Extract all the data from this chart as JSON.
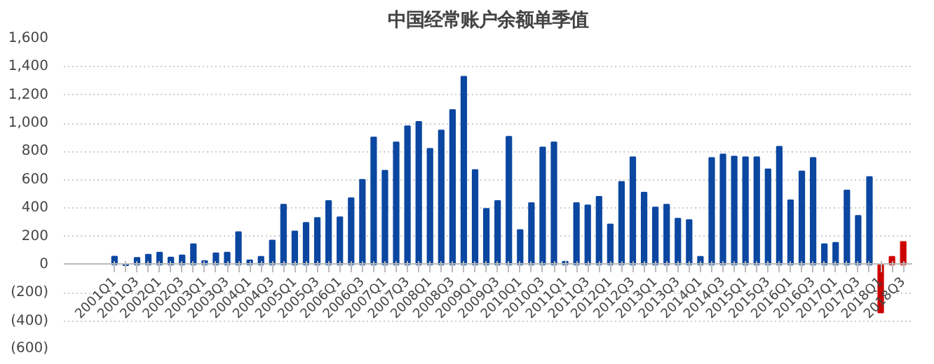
{
  "chart_data": {
    "type": "bar",
    "title": "中国经常账户余额单季值",
    "categories": [
      "2001Q1",
      null,
      "2001Q3",
      null,
      "2002Q1",
      null,
      "2002Q3",
      null,
      "2003Q1",
      null,
      "2003Q3",
      null,
      "2004Q1",
      null,
      "2004Q3",
      null,
      "2005Q1",
      null,
      "2005Q3",
      null,
      "2006Q1",
      null,
      "2006Q3",
      null,
      "2007Q1",
      null,
      "2007Q3",
      null,
      "2008Q1",
      null,
      "2008Q3",
      null,
      "2009Q1",
      null,
      "2009Q3",
      null,
      "2010Q1",
      null,
      "2010Q3",
      null,
      "2011Q1",
      null,
      "2011Q3",
      null,
      "2012Q1",
      null,
      "2012Q3",
      null,
      "2013Q1",
      null,
      "2013Q3",
      null,
      "2014Q1",
      null,
      "2014Q3",
      null,
      "2015Q1",
      null,
      "2015Q3",
      null,
      "2016Q1",
      null,
      "2016Q3",
      null,
      "2017Q1",
      null,
      "2017Q3",
      null,
      "2018Q1",
      null,
      "2018Q3"
    ],
    "values": [
      57,
      -5,
      48,
      70,
      85,
      50,
      65,
      145,
      25,
      80,
      85,
      230,
      30,
      55,
      170,
      425,
      235,
      295,
      330,
      450,
      335,
      470,
      600,
      900,
      665,
      865,
      980,
      1010,
      820,
      950,
      1095,
      1330,
      670,
      395,
      450,
      905,
      245,
      435,
      830,
      865,
      20,
      435,
      420,
      480,
      285,
      585,
      760,
      510,
      405,
      425,
      325,
      315,
      55,
      755,
      780,
      765,
      760,
      760,
      675,
      835,
      455,
      660,
      755,
      145,
      155,
      525,
      345,
      620,
      -340,
      55,
      160
    ],
    "colors": [
      "#0b47a1",
      "#0b47a1",
      "#0b47a1",
      "#0b47a1",
      "#0b47a1",
      "#0b47a1",
      "#0b47a1",
      "#0b47a1",
      "#0b47a1",
      "#0b47a1",
      "#0b47a1",
      "#0b47a1",
      "#0b47a1",
      "#0b47a1",
      "#0b47a1",
      "#0b47a1",
      "#0b47a1",
      "#0b47a1",
      "#0b47a1",
      "#0b47a1",
      "#0b47a1",
      "#0b47a1",
      "#0b47a1",
      "#0b47a1",
      "#0b47a1",
      "#0b47a1",
      "#0b47a1",
      "#0b47a1",
      "#0b47a1",
      "#0b47a1",
      "#0b47a1",
      "#0b47a1",
      "#0b47a1",
      "#0b47a1",
      "#0b47a1",
      "#0b47a1",
      "#0b47a1",
      "#0b47a1",
      "#0b47a1",
      "#0b47a1",
      "#0b47a1",
      "#0b47a1",
      "#0b47a1",
      "#0b47a1",
      "#0b47a1",
      "#0b47a1",
      "#0b47a1",
      "#0b47a1",
      "#0b47a1",
      "#0b47a1",
      "#0b47a1",
      "#0b47a1",
      "#0b47a1",
      "#0b47a1",
      "#0b47a1",
      "#0b47a1",
      "#0b47a1",
      "#0b47a1",
      "#0b47a1",
      "#0b47a1",
      "#0b47a1",
      "#0b47a1",
      "#0b47a1",
      "#0b47a1",
      "#0b47a1",
      "#0b47a1",
      "#0b47a1",
      "#0b47a1",
      "#cc0000",
      "#cc0000",
      "#cc0000"
    ],
    "ylim": [
      -600,
      1600
    ],
    "yticks": [
      {
        "value": -600,
        "label": "(600)"
      },
      {
        "value": -400,
        "label": "(400)"
      },
      {
        "value": -200,
        "label": "(200)"
      },
      0,
      {
        "value": 200,
        "label": "200"
      },
      {
        "value": 400,
        "label": "400"
      },
      {
        "value": 600,
        "label": "600"
      },
      {
        "value": 800,
        "label": "800"
      },
      {
        "value": 1000,
        "label": "1,000"
      },
      {
        "value": 1200,
        "label": "1,200"
      },
      {
        "value": 1400,
        "label": "1,400"
      },
      {
        "value": 1600,
        "label": "1,600"
      }
    ],
    "grid": "y"
  }
}
